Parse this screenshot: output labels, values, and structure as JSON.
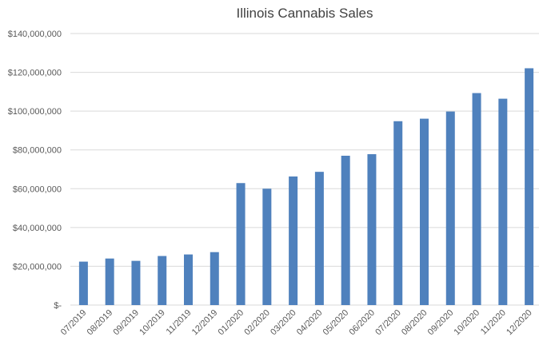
{
  "chart_data": {
    "type": "bar",
    "title": "Illinois Cannabis Sales",
    "xlabel": "",
    "ylabel": "",
    "ylim": [
      0,
      140000000
    ],
    "yticks": [
      0,
      20000000,
      40000000,
      60000000,
      80000000,
      100000000,
      120000000,
      140000000
    ],
    "ytick_labels": [
      "$-",
      "$20,000,000",
      "$40,000,000",
      "$60,000,000",
      "$80,000,000",
      "$100,000,000",
      "$120,000,000",
      "$140,000,000"
    ],
    "grid": true,
    "legend": "none",
    "color": "#4f81bd",
    "categories": [
      "07/2019",
      "08/2019",
      "09/2019",
      "10/2019",
      "11/2019",
      "12/2019",
      "01/2020",
      "02/2020",
      "03/2020",
      "04/2020",
      "05/2020",
      "06/2020",
      "07/2020",
      "08/2020",
      "09/2020",
      "10/2020",
      "11/2020",
      "12/2020"
    ],
    "values": [
      22400000,
      24000000,
      22800000,
      25300000,
      26100000,
      27300000,
      62900000,
      60000000,
      66300000,
      68700000,
      77000000,
      77800000,
      94800000,
      96100000,
      99800000,
      109300000,
      106400000,
      122100000
    ]
  }
}
